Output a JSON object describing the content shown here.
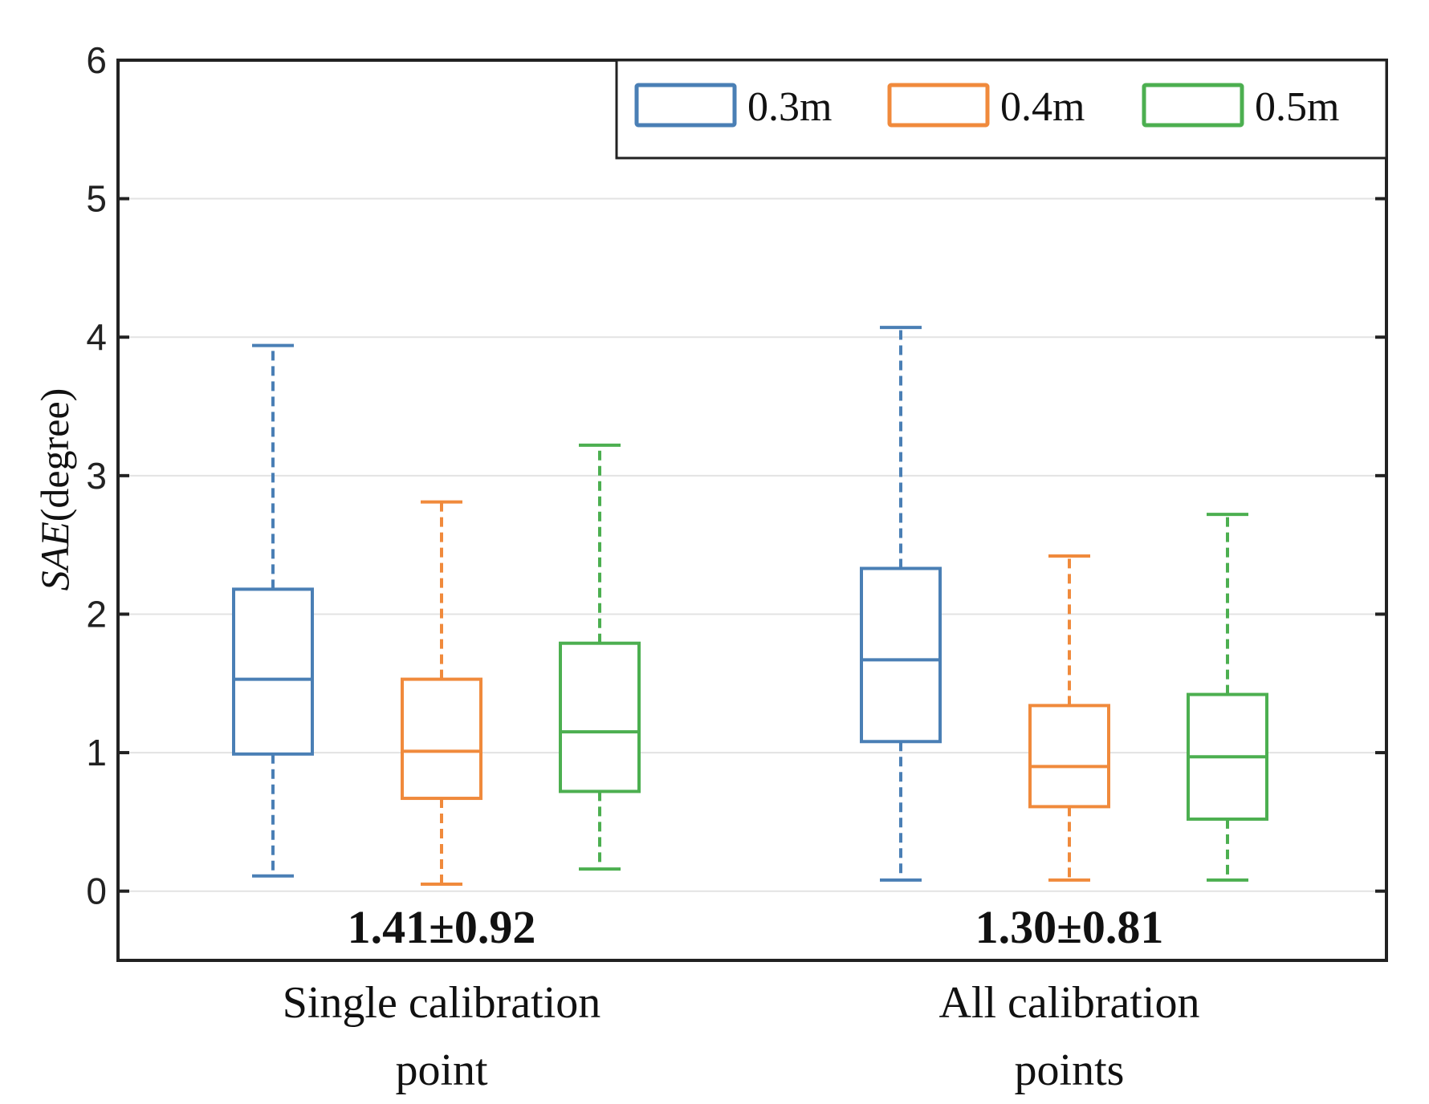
{
  "chart_data": {
    "type": "box",
    "title": "",
    "xlabel": "",
    "ylabel_italic": "SAE",
    "ylabel_rest": "(degree)",
    "ylim": [
      -0.5,
      6
    ],
    "yticks": [
      0,
      1,
      2,
      3,
      4,
      5,
      6
    ],
    "grid": "horizontal",
    "legend_position": "top-right",
    "categories": [
      {
        "lines": [
          "Single calibration",
          "point"
        ],
        "stat": "1.41±0.92"
      },
      {
        "lines": [
          "All calibration",
          "points"
        ],
        "stat": "1.30±0.81"
      }
    ],
    "series": [
      {
        "name": "0.3m",
        "color": "#4a7fb5",
        "boxes": [
          {
            "whisker_low": 0.11,
            "q1": 0.99,
            "median": 1.53,
            "q3": 2.18,
            "whisker_high": 3.94
          },
          {
            "whisker_low": 0.08,
            "q1": 1.08,
            "median": 1.67,
            "q3": 2.33,
            "whisker_high": 4.07
          }
        ]
      },
      {
        "name": "0.4m",
        "color": "#f08a3c",
        "boxes": [
          {
            "whisker_low": 0.05,
            "q1": 0.67,
            "median": 1.01,
            "q3": 1.53,
            "whisker_high": 2.81
          },
          {
            "whisker_low": 0.08,
            "q1": 0.61,
            "median": 0.9,
            "q3": 1.34,
            "whisker_high": 2.42
          }
        ]
      },
      {
        "name": "0.5m",
        "color": "#4caf50",
        "boxes": [
          {
            "whisker_low": 0.16,
            "q1": 0.72,
            "median": 1.15,
            "q3": 1.79,
            "whisker_high": 3.22
          },
          {
            "whisker_low": 0.08,
            "q1": 0.52,
            "median": 0.97,
            "q3": 1.42,
            "whisker_high": 2.72
          }
        ]
      }
    ]
  }
}
